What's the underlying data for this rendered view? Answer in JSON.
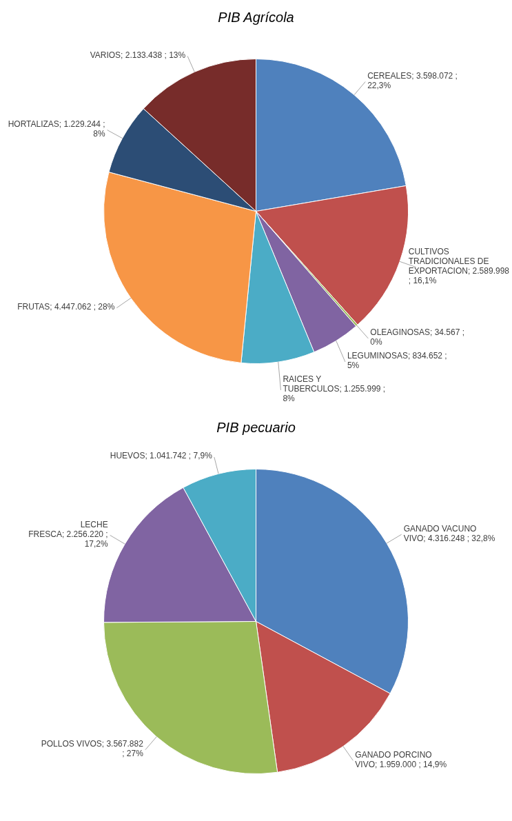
{
  "chart_data": [
    {
      "type": "pie",
      "title": "PIB Agrícola",
      "categories": [
        "CEREALES",
        "CULTIVOS TRADICIONALES DE EXPORTACION",
        "OLEAGINOSAS",
        "LEGUMINOSAS",
        "RAICES Y TUBERCULOS",
        "FRUTAS",
        "HORTALIZAS",
        "VARIOS"
      ],
      "values": [
        3598072,
        2589998,
        34567,
        834652,
        1255999,
        4447062,
        1229244,
        2133438
      ],
      "colors": [
        "#4f81bd",
        "#c0504d",
        "#9bbb59",
        "#8064a2",
        "#4bacc6",
        "#f79646",
        "#2c4d75",
        "#772c2a"
      ],
      "value_labels": [
        "3.598.072 ; 22,3%",
        "2.589.998 ; 16,1%",
        "34.567 ; 0%",
        "834.652 ; 5%",
        "1.255.999 ; 8%",
        "4.447.062 ; 28%",
        "1.229.244 ; 8%",
        "2.133.438 ; 13%"
      ]
    },
    {
      "type": "pie",
      "title": "PIB pecuario",
      "categories": [
        "GANADO VACUNO VIVO",
        "GANADO PORCINO VIVO",
        "POLLOS VIVOS",
        "LECHE FRESCA",
        "HUEVOS"
      ],
      "values": [
        4316248,
        1959000,
        3567882,
        2256220,
        1041742
      ],
      "colors": [
        "#4f81bd",
        "#c0504d",
        "#9bbb59",
        "#8064a2",
        "#4bacc6"
      ],
      "value_labels": [
        "4.316.248 ; 32,8%",
        "1.959.000 ; 14,9%",
        "3.567.882 ; 27%",
        "2.256.220 ; 17,2%",
        "1.041.742 ; 7,9%"
      ]
    }
  ]
}
